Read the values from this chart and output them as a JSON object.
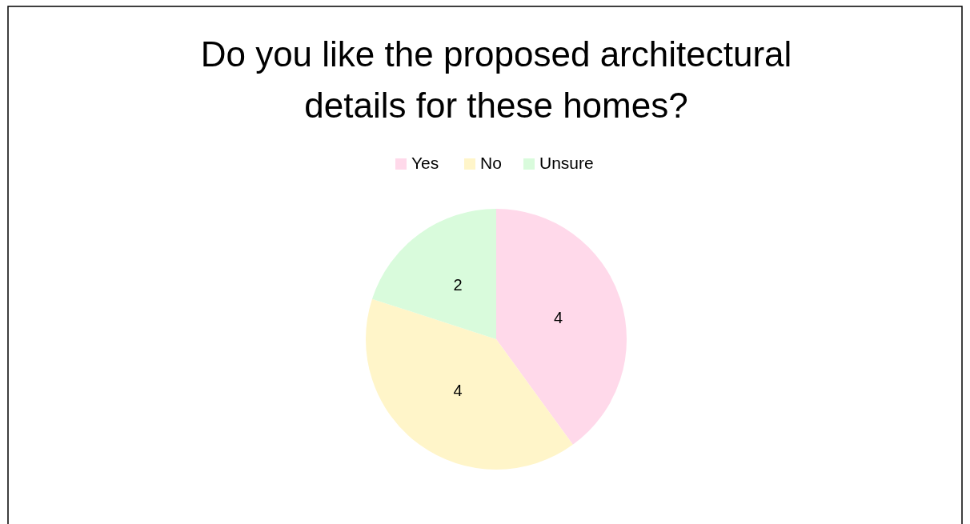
{
  "chart_data": {
    "type": "pie",
    "title": "Do you like the proposed architectural details for these homes?",
    "categories": [
      "Yes",
      "No",
      "Unsure"
    ],
    "values": [
      4,
      4,
      2
    ],
    "colors": [
      "#ffd9ea",
      "#fff5c9",
      "#d9fbdc"
    ],
    "data_labels": true,
    "legend": "top"
  }
}
